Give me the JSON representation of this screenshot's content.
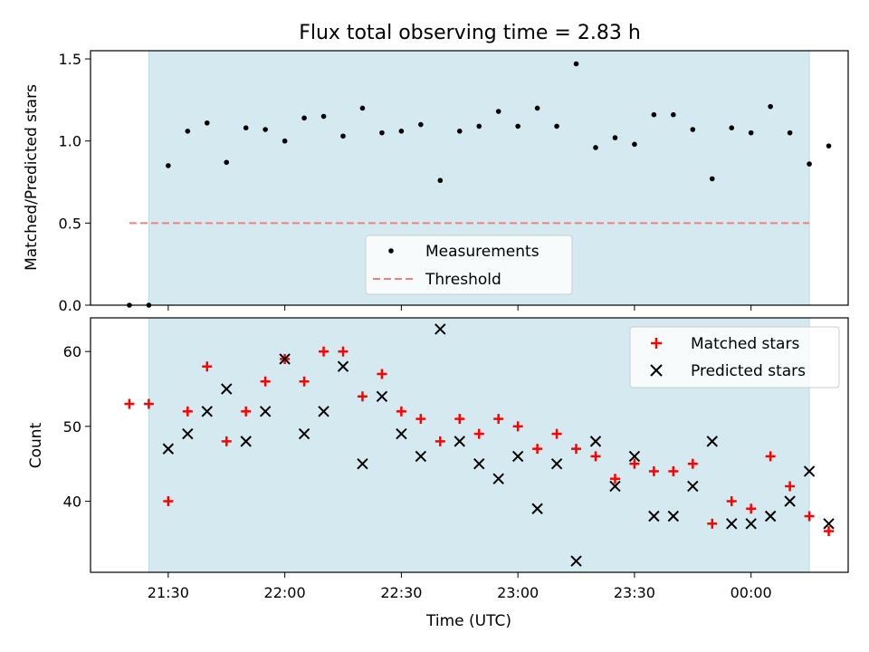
{
  "title": "Flux total observing time = 2.83 h",
  "colors": {
    "band": "#d4eaf0",
    "band_edge": "#b8dde6",
    "measurement": "#000000",
    "threshold": "#f08080",
    "matched": "#ff0000",
    "predicted": "#000000"
  },
  "chart_data": [
    {
      "type": "scatter",
      "panel": "top",
      "xlabel": "",
      "ylabel": "Matched/Predicted stars",
      "ylim": [
        0,
        1.55
      ],
      "xlim": [
        "21:10",
        "00:25"
      ],
      "y_ticks": [
        0,
        0.5,
        1.0,
        1.5
      ],
      "y_tick_labels": [
        "0.0",
        "0.5",
        "1.0",
        "1.5"
      ],
      "observing_window": [
        "21:25",
        "00:15"
      ],
      "threshold": {
        "y": 0.5,
        "x_start": "21:20",
        "x_end": "00:15"
      },
      "legend": {
        "placement": "lower-center",
        "entries": [
          "Measurements",
          "Threshold"
        ]
      },
      "series": [
        {
          "name": "Measurements",
          "points": [
            [
              "21:20",
              0.0
            ],
            [
              "21:25",
              0.0
            ],
            [
              "21:30",
              0.85
            ],
            [
              "21:35",
              1.06
            ],
            [
              "21:40",
              1.11
            ],
            [
              "21:45",
              0.87
            ],
            [
              "21:50",
              1.08
            ],
            [
              "21:55",
              1.07
            ],
            [
              "22:00",
              1.0
            ],
            [
              "22:05",
              1.14
            ],
            [
              "22:10",
              1.15
            ],
            [
              "22:15",
              1.03
            ],
            [
              "22:20",
              1.2
            ],
            [
              "22:25",
              1.05
            ],
            [
              "22:30",
              1.06
            ],
            [
              "22:35",
              1.1
            ],
            [
              "22:40",
              0.76
            ],
            [
              "22:45",
              1.06
            ],
            [
              "22:50",
              1.09
            ],
            [
              "22:55",
              1.18
            ],
            [
              "23:00",
              1.09
            ],
            [
              "23:05",
              1.2
            ],
            [
              "23:10",
              1.09
            ],
            [
              "23:15",
              1.47
            ],
            [
              "23:20",
              0.96
            ],
            [
              "23:25",
              1.02
            ],
            [
              "23:30",
              0.98
            ],
            [
              "23:35",
              1.16
            ],
            [
              "23:40",
              1.16
            ],
            [
              "23:45",
              1.07
            ],
            [
              "23:50",
              0.77
            ],
            [
              "23:55",
              1.08
            ],
            [
              "00:00",
              1.05
            ],
            [
              "00:05",
              1.21
            ],
            [
              "00:10",
              1.05
            ],
            [
              "00:15",
              0.86
            ],
            [
              "00:20",
              0.97
            ]
          ]
        }
      ]
    },
    {
      "type": "scatter",
      "panel": "bottom",
      "xlabel": "Time (UTC)",
      "ylabel": "Count",
      "ylim": [
        30.5,
        64.5
      ],
      "xlim": [
        "21:10",
        "00:25"
      ],
      "y_ticks": [
        40,
        50,
        60
      ],
      "y_tick_labels": [
        "40",
        "50",
        "60"
      ],
      "x_ticks": [
        "21:30",
        "22:00",
        "22:30",
        "23:00",
        "23:30",
        "00:00"
      ],
      "observing_window": [
        "21:25",
        "00:15"
      ],
      "legend": {
        "placement": "upper-right",
        "entries": [
          "Matched stars",
          "Predicted stars"
        ]
      },
      "series": [
        {
          "name": "Matched stars",
          "marker": "plus",
          "points": [
            [
              "21:20",
              53
            ],
            [
              "21:25",
              53
            ],
            [
              "21:30",
              40
            ],
            [
              "21:35",
              52
            ],
            [
              "21:40",
              58
            ],
            [
              "21:45",
              48
            ],
            [
              "21:50",
              52
            ],
            [
              "21:55",
              56
            ],
            [
              "22:00",
              59
            ],
            [
              "22:05",
              56
            ],
            [
              "22:10",
              60
            ],
            [
              "22:15",
              60
            ],
            [
              "22:20",
              54
            ],
            [
              "22:25",
              57
            ],
            [
              "22:30",
              52
            ],
            [
              "22:35",
              51
            ],
            [
              "22:40",
              48
            ],
            [
              "22:45",
              51
            ],
            [
              "22:50",
              49
            ],
            [
              "22:55",
              51
            ],
            [
              "23:00",
              50
            ],
            [
              "23:05",
              47
            ],
            [
              "23:10",
              49
            ],
            [
              "23:15",
              47
            ],
            [
              "23:20",
              46
            ],
            [
              "23:25",
              43
            ],
            [
              "23:30",
              45
            ],
            [
              "23:35",
              44
            ],
            [
              "23:40",
              44
            ],
            [
              "23:45",
              45
            ],
            [
              "23:50",
              37
            ],
            [
              "23:55",
              40
            ],
            [
              "00:00",
              39
            ],
            [
              "00:05",
              46
            ],
            [
              "00:10",
              42
            ],
            [
              "00:15",
              38
            ],
            [
              "00:20",
              36
            ]
          ]
        },
        {
          "name": "Predicted stars",
          "marker": "x",
          "points": [
            [
              "21:30",
              47
            ],
            [
              "21:35",
              49
            ],
            [
              "21:40",
              52
            ],
            [
              "21:45",
              55
            ],
            [
              "21:50",
              48
            ],
            [
              "21:55",
              52
            ],
            [
              "22:00",
              59
            ],
            [
              "22:05",
              49
            ],
            [
              "22:10",
              52
            ],
            [
              "22:15",
              58
            ],
            [
              "22:20",
              45
            ],
            [
              "22:25",
              54
            ],
            [
              "22:30",
              49
            ],
            [
              "22:35",
              46
            ],
            [
              "22:40",
              63
            ],
            [
              "22:45",
              48
            ],
            [
              "22:50",
              45
            ],
            [
              "22:55",
              43
            ],
            [
              "23:00",
              46
            ],
            [
              "23:05",
              39
            ],
            [
              "23:10",
              45
            ],
            [
              "23:15",
              32
            ],
            [
              "23:20",
              48
            ],
            [
              "23:25",
              42
            ],
            [
              "23:30",
              46
            ],
            [
              "23:35",
              38
            ],
            [
              "23:40",
              38
            ],
            [
              "23:45",
              42
            ],
            [
              "23:50",
              48
            ],
            [
              "23:55",
              37
            ],
            [
              "00:00",
              37
            ],
            [
              "00:05",
              38
            ],
            [
              "00:10",
              40
            ],
            [
              "00:15",
              44
            ],
            [
              "00:20",
              37
            ]
          ]
        }
      ]
    }
  ]
}
